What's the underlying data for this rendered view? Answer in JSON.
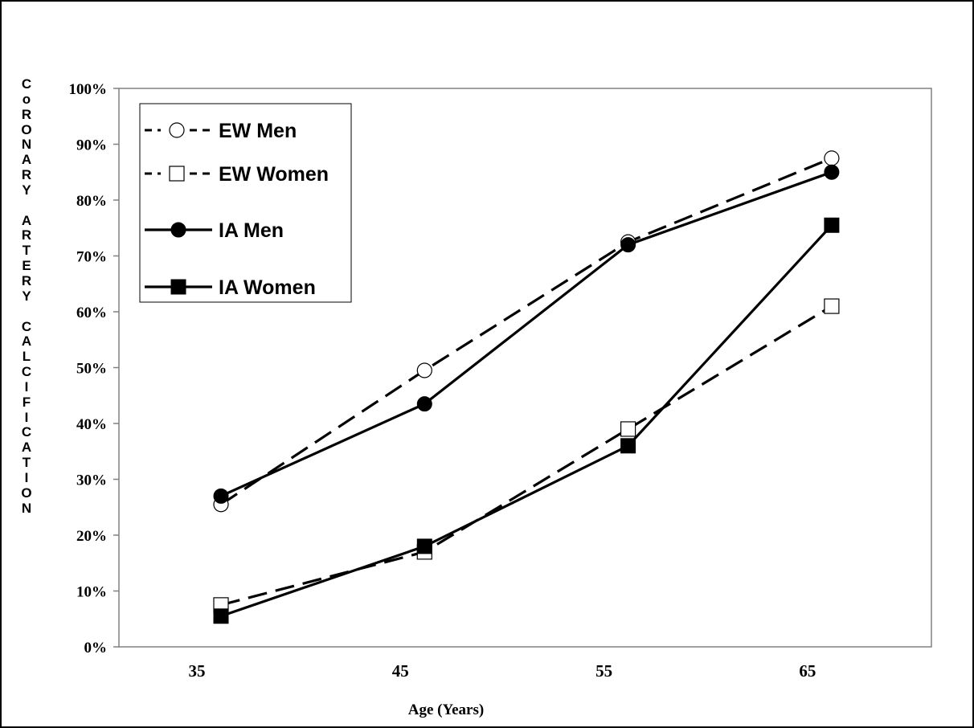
{
  "chart_data": {
    "type": "line",
    "title": "",
    "xlabel": "Age (Years)",
    "ylabel": "CoRONARY ARTERY CALCIFICATION",
    "x": [
      35,
      45,
      55,
      65
    ],
    "ylim": [
      0,
      100
    ],
    "y_ticks": [
      "0%",
      "10%",
      "20%",
      "30%",
      "40%",
      "50%",
      "60%",
      "70%",
      "80%",
      "90%",
      "100%"
    ],
    "grid": false,
    "legend_position": "top-left",
    "series": [
      {
        "name": "EW Men",
        "values": [
          25.5,
          49.5,
          72.5,
          87.5
        ],
        "line": "dashed",
        "marker": "open-circle"
      },
      {
        "name": "EW Women",
        "values": [
          7.5,
          17,
          39,
          61
        ],
        "line": "dashed",
        "marker": "open-square"
      },
      {
        "name": "IA Men",
        "values": [
          27,
          43.5,
          72,
          85
        ],
        "line": "solid",
        "marker": "filled-circle"
      },
      {
        "name": "IA Women",
        "values": [
          5.5,
          18,
          36,
          75.5
        ],
        "line": "solid",
        "marker": "filled-square"
      }
    ],
    "colors": {
      "line": "#000000",
      "axis": "#808080",
      "background": "#ffffff"
    }
  }
}
